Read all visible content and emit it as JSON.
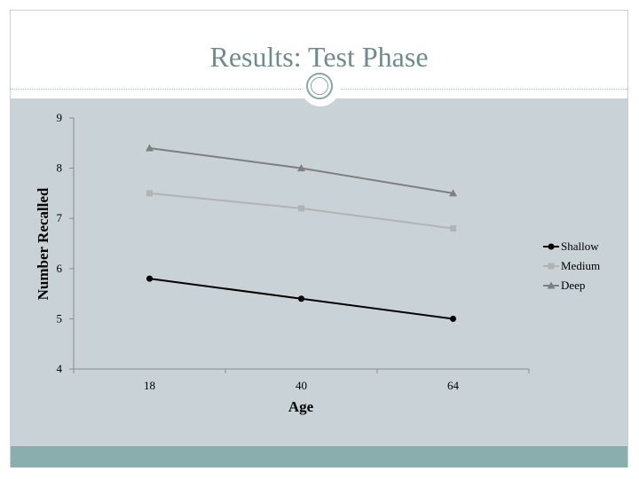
{
  "slide": {
    "title": "Results: Test Phase",
    "colors": {
      "title": "#6e8c8d",
      "panel": "#c8d2d7",
      "footer": "#8aaeae"
    }
  },
  "chart_data": {
    "type": "line",
    "categories": [
      "18",
      "40",
      "64"
    ],
    "xlabel": "Age",
    "ylabel": "Number Recalled",
    "ylim": [
      4,
      9
    ],
    "yticks": [
      4,
      5,
      6,
      7,
      8,
      9
    ],
    "grid": false,
    "legend_position": "right",
    "series": [
      {
        "name": "Shallow",
        "values": [
          5.8,
          5.4,
          5.0
        ],
        "color": "#000000",
        "marker": "circle"
      },
      {
        "name": "Medium",
        "values": [
          7.5,
          7.2,
          6.8
        ],
        "color": "#b3b3b3",
        "marker": "square"
      },
      {
        "name": "Deep",
        "values": [
          8.4,
          8.0,
          7.5
        ],
        "color": "#7f7f7f",
        "marker": "triangle"
      }
    ]
  }
}
